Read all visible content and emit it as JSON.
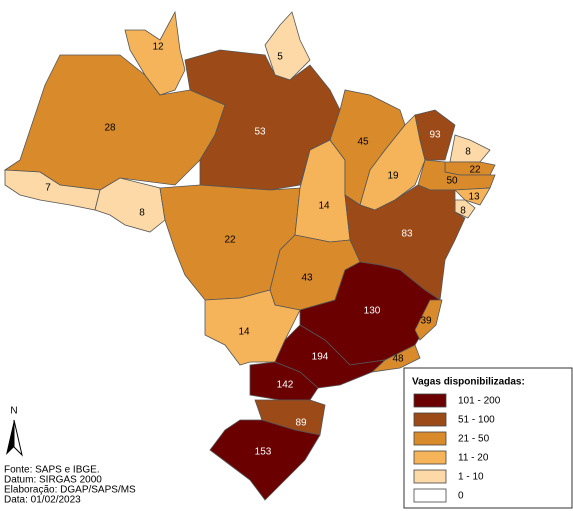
{
  "map": {
    "regions": [
      {
        "value": 28,
        "color": "#d98b2c"
      },
      {
        "value": 7,
        "color": "#fcd9a6"
      },
      {
        "value": 8,
        "color": "#fcd9a6"
      },
      {
        "value": 12,
        "color": "#f5b459"
      },
      {
        "value": 5,
        "color": "#fcd9a6"
      },
      {
        "value": 53,
        "color": "#9c4a17"
      },
      {
        "value": 22,
        "color": "#d98b2c"
      },
      {
        "value": 14,
        "color": "#f5b459"
      },
      {
        "value": 45,
        "color": "#d98b2c"
      },
      {
        "value": 19,
        "color": "#f5b459"
      },
      {
        "value": 93,
        "color": "#9c4a17"
      },
      {
        "value": 8,
        "color": "#fcd9a6"
      },
      {
        "value": 22,
        "color": "#d98b2c"
      },
      {
        "value": 50,
        "color": "#d98b2c"
      },
      {
        "value": 13,
        "color": "#f5b459"
      },
      {
        "value": 8,
        "color": "#fcd9a6"
      },
      {
        "value": 83,
        "color": "#9c4a17"
      },
      {
        "value": 43,
        "color": "#d98b2c"
      },
      {
        "color": "#ffffff"
      },
      {
        "value": 14,
        "color": "#f5b459"
      },
      {
        "value": 130,
        "color": "#6a0000"
      },
      {
        "value": 39,
        "color": "#d98b2c"
      },
      {
        "value": 48,
        "color": "#d98b2c"
      },
      {
        "value": 194,
        "color": "#6a0000"
      },
      {
        "value": 142,
        "color": "#6a0000"
      },
      {
        "value": 89,
        "color": "#9c4a17"
      },
      {
        "value": 153,
        "color": "#6a0000"
      }
    ],
    "north": "N",
    "legend": {
      "title": "Vagas disponibilizadas:",
      "items": [
        {
          "label": "101 - 200",
          "color": "#6a0000"
        },
        {
          "label": "51 - 100",
          "color": "#9c4a17"
        },
        {
          "label": "21 - 50",
          "color": "#d98b2c"
        },
        {
          "label": "11 - 20",
          "color": "#f5b459"
        },
        {
          "label": "1 - 10",
          "color": "#fcd9a6"
        },
        {
          "label": "0",
          "color": "#ffffff"
        }
      ]
    },
    "source": [
      "Fonte: SAPS e IBGE.",
      "Datum: SIRGAS 2000",
      "Elaboração: DGAP/SAPS/MS",
      "Data: 01/02/2023"
    ]
  }
}
